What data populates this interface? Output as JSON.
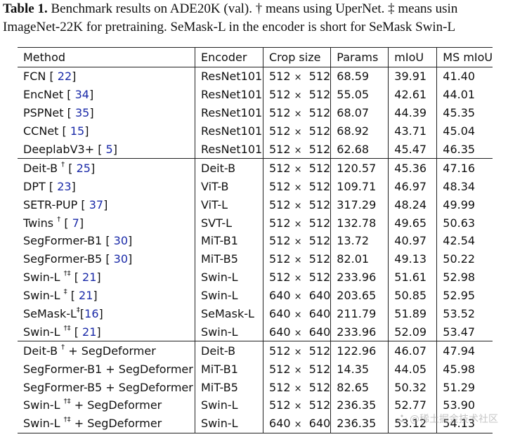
{
  "caption": {
    "label": "Table 1.",
    "text": " Benchmark results on ADE20K (val). † means using UperNet. ‡ means usin",
    "line2": "ImageNet-22K for pretraining. SeMask-L in the encoder is short for SeMask Swin-L"
  },
  "table": {
    "headers": [
      "Method",
      "Encoder",
      "Crop size",
      "Params",
      "mIoU",
      "MS mIoU"
    ],
    "rows": [
      {
        "name": "FCN",
        "sup": "",
        "ref": "22",
        "suffix": "",
        "encoder": "ResNet101",
        "crop_a": "512",
        "crop_b": "512",
        "params": "68.59",
        "miou": "39.91",
        "ms": "41.40"
      },
      {
        "name": "EncNet",
        "sup": "",
        "ref": "34",
        "suffix": "",
        "encoder": "ResNet101",
        "crop_a": "512",
        "crop_b": "512",
        "params": "55.05",
        "miou": "42.61",
        "ms": "44.01"
      },
      {
        "name": "PSPNet",
        "sup": "",
        "ref": "35",
        "suffix": "",
        "encoder": "ResNet101",
        "crop_a": "512",
        "crop_b": "512",
        "params": "68.07",
        "miou": "44.39",
        "ms": "45.35"
      },
      {
        "name": "CCNet",
        "sup": "",
        "ref": "15",
        "suffix": "",
        "encoder": "ResNet101",
        "crop_a": "512",
        "crop_b": "512",
        "params": "68.92",
        "miou": "43.71",
        "ms": "45.04"
      },
      {
        "name": "DeeplabV3+",
        "sup": "",
        "ref": "5",
        "suffix": "",
        "encoder": "ResNet101",
        "crop_a": "512",
        "crop_b": "512",
        "params": "62.68",
        "miou": "45.47",
        "ms": "46.35"
      },
      {
        "name": "Deit-B",
        "sup": "†",
        "ref": "25",
        "suffix": "",
        "encoder": "Deit-B",
        "crop_a": "512",
        "crop_b": "512",
        "params": "120.57",
        "miou": "45.36",
        "ms": "47.16"
      },
      {
        "name": "DPT",
        "sup": "",
        "ref": "23",
        "suffix": "",
        "encoder": "ViT-B",
        "crop_a": "512",
        "crop_b": "512",
        "params": "109.71",
        "miou": "46.97",
        "ms": "48.34"
      },
      {
        "name": "SETR-PUP",
        "sup": "",
        "ref": "37",
        "suffix": "",
        "encoder": "ViT-L",
        "crop_a": "512",
        "crop_b": "512",
        "params": "317.29",
        "miou": "48.24",
        "ms": "49.99"
      },
      {
        "name": "Twins",
        "sup": "†",
        "ref": "7",
        "suffix": "",
        "encoder": "SVT-L",
        "crop_a": "512",
        "crop_b": "512",
        "params": "132.78",
        "miou": "49.65",
        "ms": "50.63"
      },
      {
        "name": "SegFormer-B1",
        "sup": "",
        "ref": "30",
        "suffix": "",
        "encoder": "MiT-B1",
        "crop_a": "512",
        "crop_b": "512",
        "params": "13.72",
        "miou": "40.97",
        "ms": "42.54"
      },
      {
        "name": "SegFormer-B5",
        "sup": "",
        "ref": "30",
        "suffix": "",
        "encoder": "MiT-B5",
        "crop_a": "512",
        "crop_b": "512",
        "params": "82.01",
        "miou": "49.13",
        "ms": "50.22"
      },
      {
        "name": "Swin-L",
        "sup": "†‡",
        "ref": "21",
        "suffix": "",
        "encoder": "Swin-L",
        "crop_a": "512",
        "crop_b": "512",
        "params": "233.96",
        "miou": "51.61",
        "ms": "52.98"
      },
      {
        "name": "Swin-L",
        "sup": "‡",
        "ref": "21",
        "suffix": "",
        "encoder": "Swin-L",
        "crop_a": "640",
        "crop_b": "640",
        "params": "203.65",
        "miou": "50.85",
        "ms": "52.95"
      },
      {
        "name": "SeMask-L",
        "sup": "‡",
        "ref": "16",
        "suffix": "",
        "encoder": "SeMask-L",
        "crop_a": "640",
        "crop_b": "640",
        "params": "211.79",
        "miou": "51.89",
        "ms": "53.52"
      },
      {
        "name": "Swin-L",
        "sup": "†‡",
        "ref": "21",
        "suffix": "",
        "encoder": "Swin-L",
        "crop_a": "640",
        "crop_b": "640",
        "params": "233.96",
        "miou": "52.09",
        "ms": "53.47"
      },
      {
        "name": "Deit-B",
        "sup": "†",
        "ref": "",
        "suffix": " + SegDeformer",
        "encoder": "Deit-B",
        "crop_a": "512",
        "crop_b": "512",
        "params": "122.96",
        "miou": "46.07",
        "ms": "47.94"
      },
      {
        "name": "SegFormer-B1",
        "sup": "",
        "ref": "",
        "suffix": " + SegDeformer",
        "encoder": "MiT-B1",
        "crop_a": "512",
        "crop_b": "512",
        "params": "14.35",
        "miou": "44.05",
        "ms": "45.98"
      },
      {
        "name": "SegFormer-B5",
        "sup": "",
        "ref": "",
        "suffix": " + SegDeformer",
        "encoder": "MiT-B5",
        "crop_a": "512",
        "crop_b": "512",
        "params": "82.65",
        "miou": "50.32",
        "ms": "51.29"
      },
      {
        "name": "Swin-L",
        "sup": "†‡",
        "ref": "",
        "suffix": " + SegDeformer",
        "encoder": "Swin-L",
        "crop_a": "512",
        "crop_b": "512",
        "params": "236.35",
        "miou": "52.77",
        "ms": "53.90"
      },
      {
        "name": "Swin-L",
        "sup": "†‡",
        "ref": "",
        "suffix": " + SegDeformer",
        "encoder": "Swin-L",
        "crop_a": "640",
        "crop_b": "640",
        "params": "236.35",
        "miou": "53.12",
        "ms": "54.13"
      }
    ],
    "group_starts": [
      5,
      15
    ]
  },
  "watermark": {
    "text": "@稀土掘金技术社区",
    "icon": "juejin-logo-icon"
  },
  "colors": {
    "ref_link": "#1a2aa8",
    "rule": "#222222"
  }
}
